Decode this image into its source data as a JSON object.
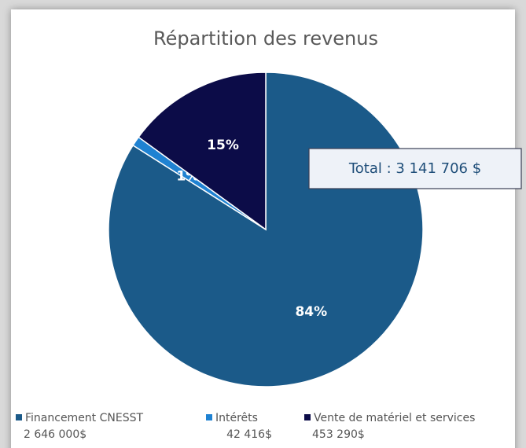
{
  "chart_data": {
    "type": "pie",
    "title": "Répartition des revenus",
    "categories": [
      "Financement CNESST",
      "Intérêts",
      "Vente de matériel et services"
    ],
    "values": [
      84,
      1,
      15
    ],
    "value_labels": [
      "84%",
      "1%",
      "15%"
    ],
    "colors": [
      "#1b5a89",
      "#1f82d2",
      "#0c0c48"
    ],
    "amounts": [
      "2 646 000$",
      "42 416$",
      "453 290$"
    ],
    "annotation": "Total : 3 141 706 $",
    "legend": "bottom"
  }
}
